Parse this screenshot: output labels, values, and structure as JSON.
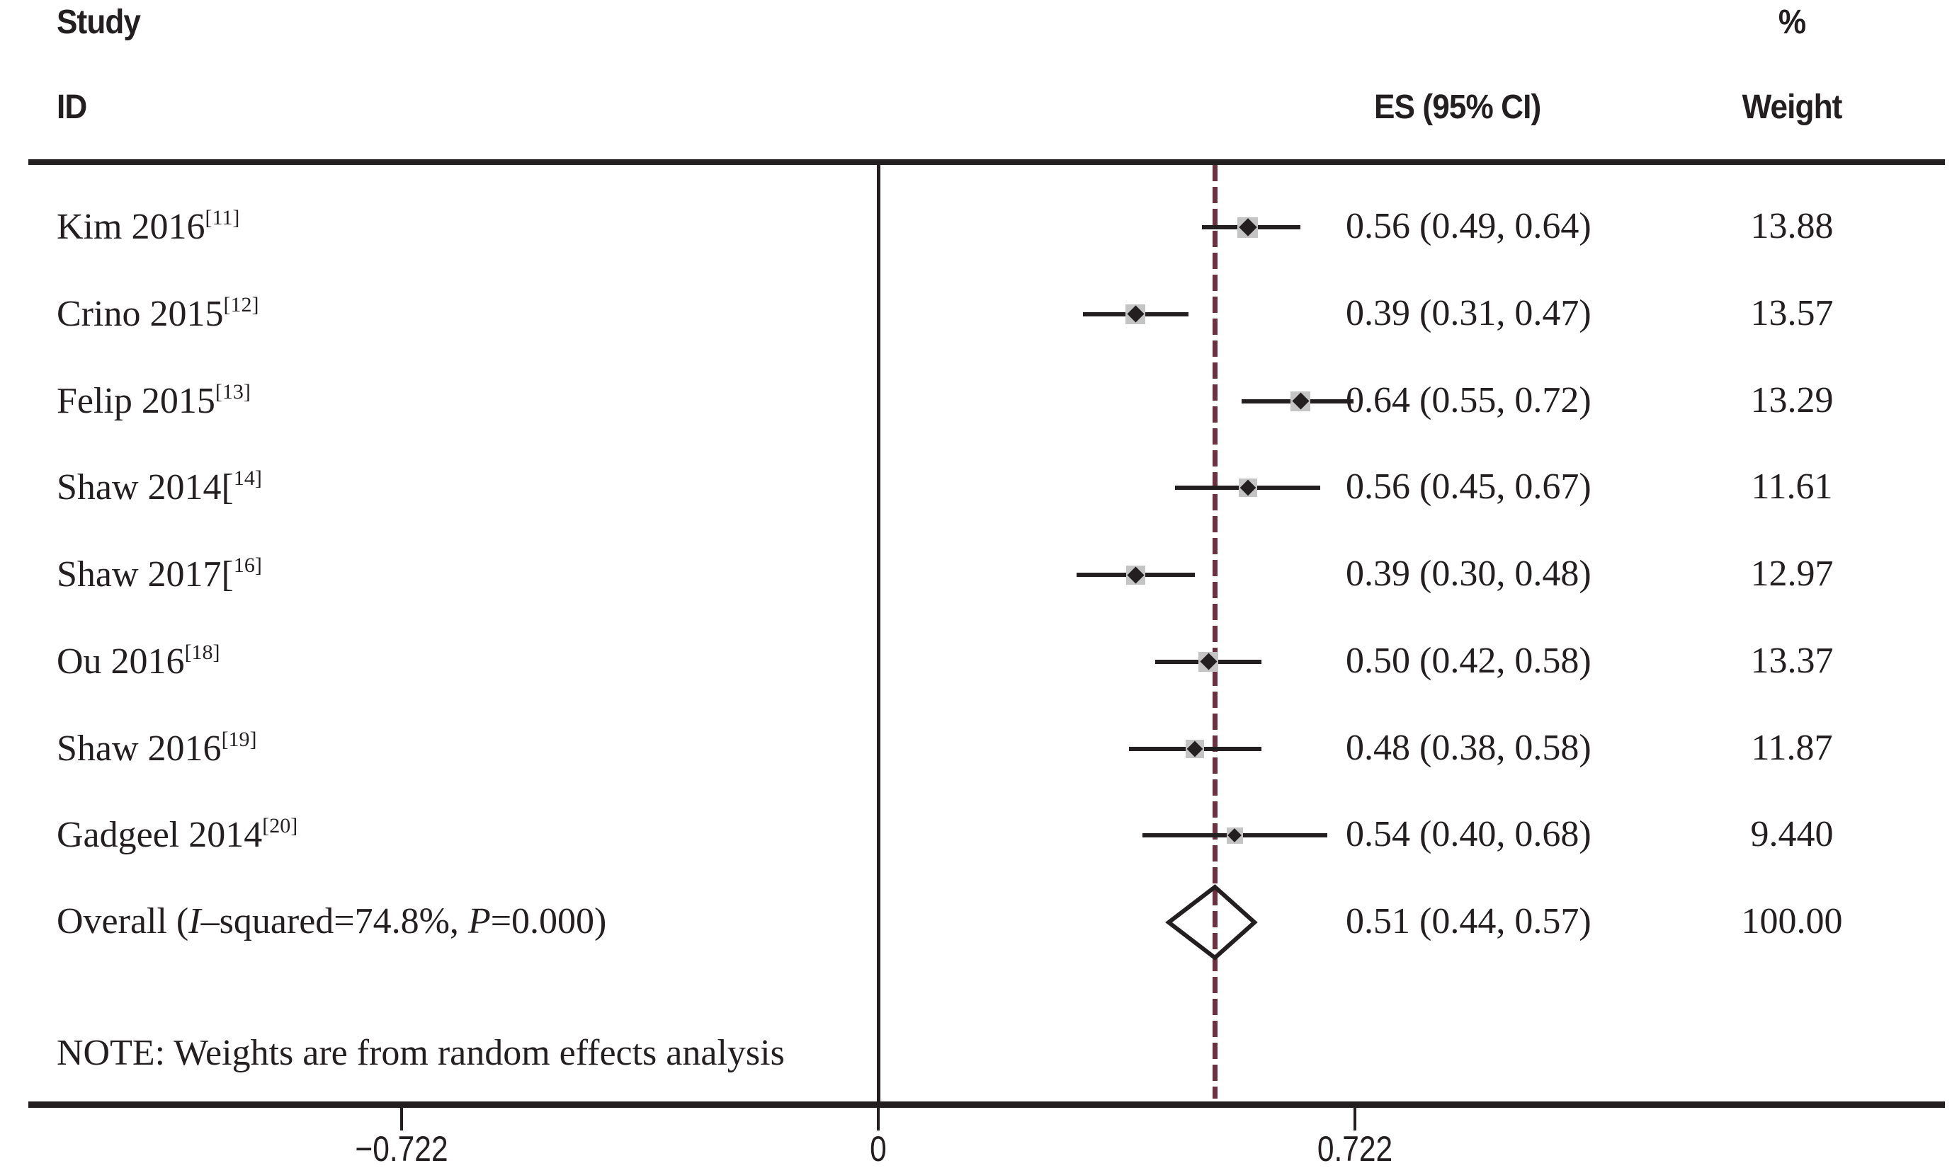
{
  "header": {
    "col_study": "Study",
    "col_id": "ID",
    "col_es": "ES (95% CI)",
    "col_pct": "%",
    "col_weight": "Weight"
  },
  "note": "NOTE: Weights are from random effects analysis",
  "colors": {
    "ink": "#231f20",
    "marker_box_fill": "#c4c4c4",
    "pooled_line_maroon": "#6f3042",
    "background": "#ffffff"
  },
  "axis": {
    "ticks": [
      {
        "value": -0.722,
        "label": "−0.722"
      },
      {
        "value": 0,
        "label": "0"
      },
      {
        "value": 0.722,
        "label": "0.722"
      }
    ]
  },
  "chart_data": {
    "type": "forest",
    "effect_label": "ES (95% CI)",
    "weight_label": "% Weight",
    "null_value": 0,
    "pooled_value": 0.51,
    "x_ticks": [
      -0.722,
      0,
      0.722
    ],
    "studies": [
      {
        "label": "Kim 2016",
        "sup": "[11]",
        "es": 0.56,
        "ci_low": 0.49,
        "ci_high": 0.64,
        "es_text": "0.56 (0.49, 0.64)",
        "weight": 13.88,
        "weight_text": "13.88"
      },
      {
        "label": "Crino 2015",
        "sup": "[12]",
        "es": 0.39,
        "ci_low": 0.31,
        "ci_high": 0.47,
        "es_text": "0.39 (0.31, 0.47)",
        "weight": 13.57,
        "weight_text": "13.57"
      },
      {
        "label": "Felip 2015",
        "sup": "[13]",
        "es": 0.64,
        "ci_low": 0.55,
        "ci_high": 0.72,
        "es_text": "0.64 (0.55, 0.72)",
        "weight": 13.29,
        "weight_text": "13.29"
      },
      {
        "label": "Shaw 2014[",
        "sup": "14]",
        "es": 0.56,
        "ci_low": 0.45,
        "ci_high": 0.67,
        "es_text": "0.56 (0.45, 0.67)",
        "weight": 11.61,
        "weight_text": "11.61"
      },
      {
        "label": "Shaw 2017[",
        "sup": "16]",
        "es": 0.39,
        "ci_low": 0.3,
        "ci_high": 0.48,
        "es_text": "0.39 (0.30, 0.48)",
        "weight": 12.97,
        "weight_text": "12.97"
      },
      {
        "label": "Ou 2016",
        "sup": "[18]",
        "es": 0.5,
        "ci_low": 0.42,
        "ci_high": 0.58,
        "es_text": "0.50 (0.42, 0.58)",
        "weight": 13.37,
        "weight_text": "13.37"
      },
      {
        "label": "Shaw 2016",
        "sup": "[19]",
        "es": 0.48,
        "ci_low": 0.38,
        "ci_high": 0.58,
        "es_text": "0.48 (0.38, 0.58)",
        "weight": 11.87,
        "weight_text": "11.87"
      },
      {
        "label": "Gadgeel 2014",
        "sup": "[20]",
        "es": 0.54,
        "ci_low": 0.4,
        "ci_high": 0.68,
        "es_text": "0.54 (0.40, 0.68)",
        "weight": 9.44,
        "weight_text": "9.440"
      }
    ],
    "overall": {
      "label_pre": "Overall  (",
      "i_label": "I",
      "label_mid": "–squared=74.8%, ",
      "p_label": "P",
      "label_post": "=0.000)",
      "es": 0.51,
      "ci_low": 0.44,
      "ci_high": 0.57,
      "es_text": "0.51 (0.44, 0.57)",
      "weight_text": "100.00"
    }
  }
}
